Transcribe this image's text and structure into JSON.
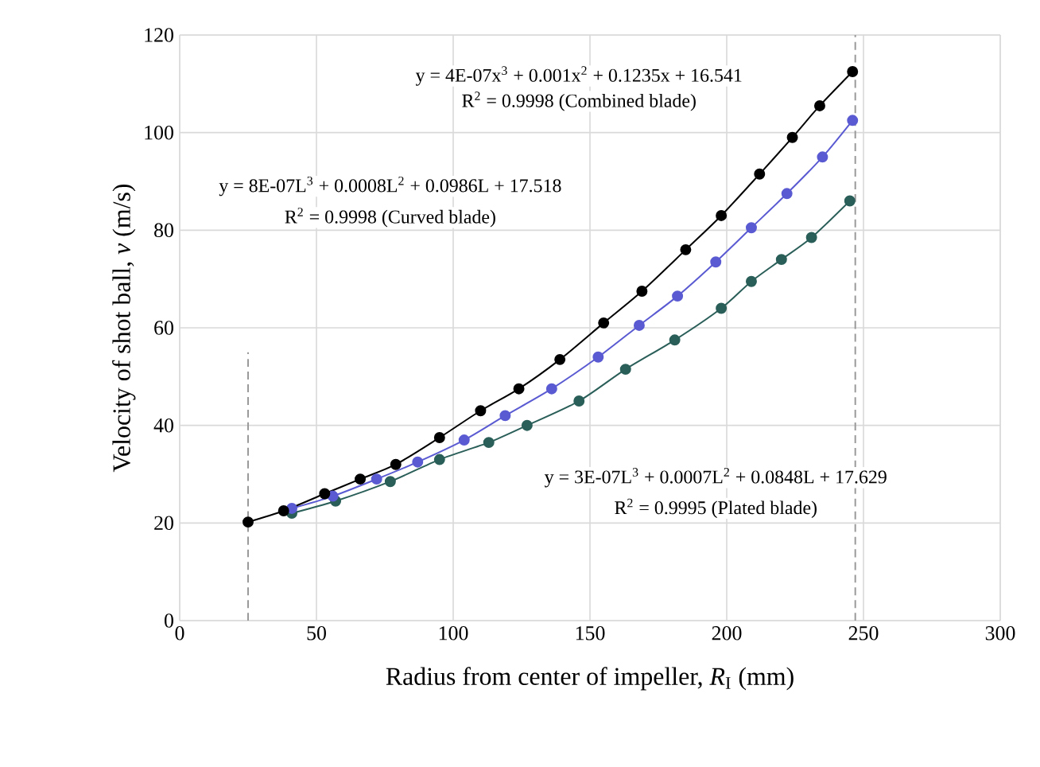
{
  "chart_data": {
    "type": "line",
    "xlabel": "Radius from center of impeller, *R*$_{I}$ (mm)",
    "ylabel": "Velocity of shot ball, *v* (m/s)",
    "xlim": [
      0,
      300
    ],
    "xticks": [
      0,
      50,
      100,
      150,
      200,
      250,
      300
    ],
    "ylim": [
      0,
      120
    ],
    "yticks": [
      0,
      20,
      40,
      60,
      80,
      100,
      120
    ],
    "grid": true,
    "series": [
      {
        "color": "#000000",
        "marker": "circle",
        "line_style": "solid",
        "x": [
          25,
          38,
          53,
          66,
          79,
          95,
          110,
          124,
          139,
          155,
          169,
          185,
          198,
          212,
          224,
          234,
          246
        ],
        "values": [
          20.2,
          22.5,
          26,
          29,
          32,
          37.5,
          43,
          47.5,
          53.5,
          61,
          67.5,
          76,
          83,
          91.5,
          99,
          105.5,
          112.5
        ]
      },
      {
        "color": "#5a5ad2",
        "marker": "circle",
        "line_style": "solid",
        "x": [
          41,
          56,
          72,
          87,
          104,
          119,
          136,
          153,
          168,
          182,
          196,
          209,
          222,
          235,
          246
        ],
        "values": [
          23,
          25.5,
          29,
          32.5,
          37,
          42,
          47.5,
          54,
          60.5,
          66.5,
          73.5,
          80.5,
          87.5,
          95,
          102.5
        ]
      },
      {
        "color": "#2a5e58",
        "marker": "circle",
        "line_style": "solid",
        "x": [
          41,
          57,
          77,
          95,
          113,
          127,
          146,
          163,
          181,
          198,
          209,
          220,
          231,
          245
        ],
        "values": [
          22,
          24.5,
          28.5,
          33,
          36.5,
          40,
          45,
          51.5,
          57.5,
          64,
          69.5,
          74,
          78.5,
          86
        ]
      },
      {
        "color": "#9a9a9a",
        "marker": "none",
        "line_style": "dashed",
        "x": [
          25,
          25
        ],
        "values": [
          0,
          55
        ]
      },
      {
        "color": "#9a9a9a",
        "marker": "none",
        "line_style": "dashed",
        "x": [
          247,
          247
        ],
        "values": [
          0,
          120
        ]
      }
    ],
    "annotations": [
      "y = 4E-07x$^{3}$ + 0.001x$^{2}$ + 0.1235x + 16.541",
      "R$^{2}$ = 0.9998 (Combined blade)",
      "y = 8E-07L$^{3}$ + 0.0008L$^{2}$ + 0.0986L + 17.518",
      "R$^{2}$ = 0.9998 (Curved blade)",
      "y = 3E-07L$^{3}$ + 0.0007L$^{2}$ + 0.0848L + 17.629",
      "R$^{2}$ = 0.9995 (Plated blade)"
    ]
  }
}
